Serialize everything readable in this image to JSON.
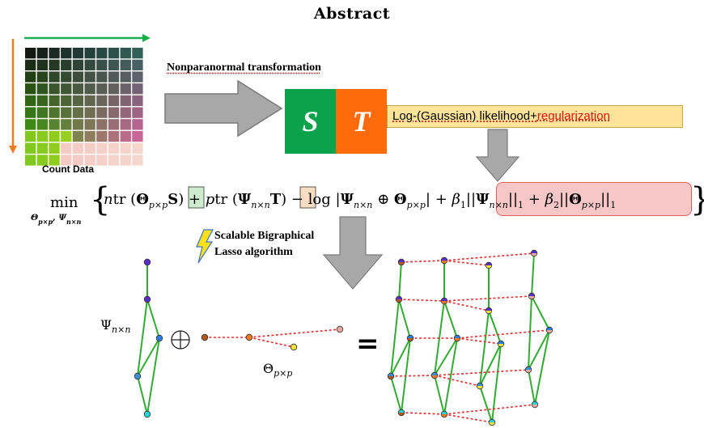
{
  "title": "Abstract",
  "heatmap_label": "Count Data",
  "transform_label": "Nonparanormal transformation",
  "box_s": "S",
  "box_t": "T",
  "likelihood": {
    "part1": "Log-(Gaussian) likelihood+",
    "part2": "regularization"
  },
  "algorithm": {
    "line1": "Scalable Bigraphical",
    "line2": "Lasso algorithm"
  },
  "psi_label": {
    "base": "Ψ",
    "sub": "n×n"
  },
  "theta_label": {
    "base": "Θ",
    "sub": "p×p"
  },
  "oplus": "⊕",
  "equals": "=",
  "colors": {
    "green": "#0aa24a",
    "orange": "#ff6a0a",
    "arrow_grey": "#a8a8a8",
    "edge_green": "#33aa33",
    "edge_red": "#e03030",
    "likelihood_bg": "#fde49a",
    "reg_bg": "#f7c7c7"
  }
}
